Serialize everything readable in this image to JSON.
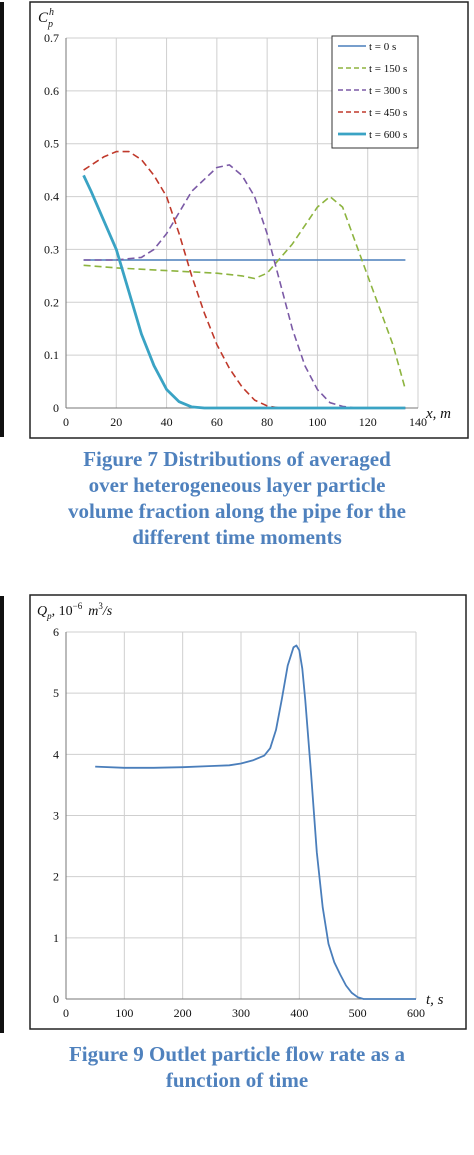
{
  "colors": {
    "caption": "#4f81bd",
    "grid": "#cfcfcf"
  },
  "chart_data": [
    {
      "type": "line",
      "ylabel_main": "C",
      "ylabel_sup": "h",
      "ylabel_sub": "p",
      "xlabel": "x, m",
      "xlim": [
        0,
        140
      ],
      "ylim": [
        0,
        0.7
      ],
      "xticks": [
        "0",
        "20",
        "40",
        "60",
        "80",
        "100",
        "120",
        "140"
      ],
      "yticks": [
        "0",
        "0.1",
        "0.2",
        "0.3",
        "0.4",
        "0.5",
        "0.6",
        "0.7"
      ],
      "grid": true,
      "legend_position": "top-right",
      "series": [
        {
          "name": "t = 0 s",
          "color": "#4a7ebb",
          "style": "solid",
          "width": 1.6,
          "x": [
            7,
            30,
            60,
            90,
            120,
            135
          ],
          "y": [
            0.28,
            0.28,
            0.28,
            0.28,
            0.28,
            0.28
          ]
        },
        {
          "name": "t = 150 s",
          "color": "#8db43f",
          "style": "dash",
          "width": 1.6,
          "x": [
            7,
            20,
            40,
            60,
            70,
            75,
            80,
            90,
            100,
            105,
            110,
            120,
            130,
            135
          ],
          "y": [
            0.27,
            0.265,
            0.26,
            0.255,
            0.25,
            0.245,
            0.255,
            0.31,
            0.38,
            0.4,
            0.38,
            0.25,
            0.12,
            0.035
          ]
        },
        {
          "name": "t = 300 s",
          "color": "#7b5aa6",
          "style": "dash",
          "width": 1.6,
          "x": [
            7,
            20,
            30,
            35,
            40,
            50,
            60,
            65,
            70,
            75,
            80,
            85,
            90,
            95,
            100,
            105,
            110,
            115,
            120,
            135
          ],
          "y": [
            0.28,
            0.28,
            0.285,
            0.3,
            0.33,
            0.41,
            0.455,
            0.46,
            0.44,
            0.4,
            0.33,
            0.24,
            0.15,
            0.08,
            0.035,
            0.01,
            0.003,
            0.0,
            0.0,
            0.0
          ]
        },
        {
          "name": "t = 450 s",
          "color": "#c0392b",
          "style": "dash",
          "width": 1.6,
          "x": [
            7,
            15,
            20,
            25,
            30,
            35,
            40,
            45,
            50,
            55,
            60,
            65,
            70,
            75,
            80,
            85,
            90,
            135
          ],
          "y": [
            0.45,
            0.475,
            0.485,
            0.485,
            0.47,
            0.44,
            0.4,
            0.33,
            0.25,
            0.18,
            0.12,
            0.075,
            0.04,
            0.015,
            0.004,
            0.0,
            0.0,
            0.0
          ]
        },
        {
          "name": "t = 600 s",
          "color": "#3aa3c4",
          "style": "solid",
          "width": 2.8,
          "x": [
            7,
            10,
            15,
            20,
            25,
            30,
            35,
            40,
            45,
            50,
            55,
            60,
            135
          ],
          "y": [
            0.44,
            0.41,
            0.355,
            0.3,
            0.22,
            0.14,
            0.08,
            0.035,
            0.012,
            0.002,
            0.0,
            0.0,
            0.0
          ]
        }
      ]
    },
    {
      "type": "line",
      "ylabel": "Q_p, 10^{-6} m^3/s",
      "ylabel_parts": {
        "q": "Q",
        "qsub": "p",
        "rest": ", 10",
        "exp": "−6",
        "unit": "m",
        "unitsup": "3",
        "tail": "/s"
      },
      "xlabel": "t, s",
      "xlim": [
        0,
        600
      ],
      "ylim": [
        0,
        6
      ],
      "xticks": [
        "0",
        "100",
        "200",
        "300",
        "400",
        "500",
        "600"
      ],
      "yticks": [
        "0",
        "1",
        "2",
        "3",
        "4",
        "5",
        "6"
      ],
      "grid": true,
      "series": [
        {
          "name": "",
          "color": "#4a7ebb",
          "style": "solid",
          "width": 1.8,
          "x": [
            50,
            100,
            150,
            200,
            250,
            280,
            300,
            320,
            340,
            350,
            360,
            370,
            380,
            390,
            395,
            400,
            405,
            410,
            420,
            430,
            440,
            450,
            460,
            470,
            480,
            490,
            500,
            510,
            540,
            600
          ],
          "y": [
            3.8,
            3.78,
            3.78,
            3.79,
            3.81,
            3.82,
            3.85,
            3.9,
            3.98,
            4.1,
            4.4,
            4.9,
            5.45,
            5.75,
            5.78,
            5.7,
            5.4,
            4.9,
            3.7,
            2.4,
            1.5,
            0.9,
            0.6,
            0.4,
            0.22,
            0.1,
            0.03,
            0.0,
            0.0,
            0.0
          ]
        }
      ]
    }
  ],
  "captions": {
    "fig7": [
      "Figure 7 Distributions of averaged",
      "over heterogeneous layer particle",
      "volume fraction along the pipe for the",
      "different time moments"
    ],
    "fig9": [
      "Figure 9 Outlet particle flow rate as a",
      "function of time"
    ]
  }
}
